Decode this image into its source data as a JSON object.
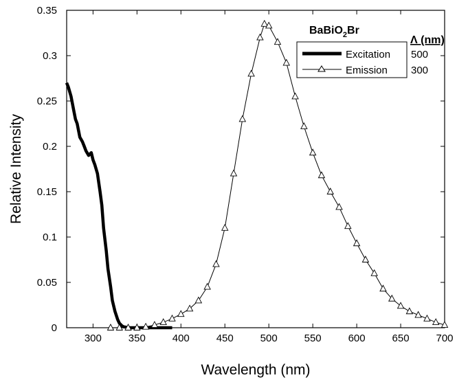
{
  "chart_data": {
    "type": "line",
    "xlabel": "Wavelength (nm)",
    "ylabel": "Relative Intensity",
    "xlim": [
      270,
      700
    ],
    "ylim": [
      0,
      0.35
    ],
    "x_ticks": [
      "300",
      "350",
      "400",
      "450",
      "500",
      "550",
      "600",
      "650",
      "700"
    ],
    "y_ticks": [
      "0",
      "0.05",
      "0.1",
      "0.15",
      "0.2",
      "0.25",
      "0.3",
      "0.35"
    ],
    "grid": false,
    "legend": {
      "title_main": "BaBiO",
      "title_sub": "2",
      "title_tail": "Br",
      "column_header": "Λ (nm)",
      "placement": "top-right"
    },
    "series": [
      {
        "name": "Excitation",
        "lambda": "500",
        "style": "thick-line",
        "color": "#000000",
        "x": [
          270,
          272,
          275,
          278,
          280,
          282,
          285,
          288,
          290,
          292,
          295,
          298,
          300,
          302,
          305,
          308,
          310,
          312,
          315,
          317,
          320,
          322,
          325,
          328,
          330,
          333,
          335,
          338,
          340,
          345,
          350,
          360,
          370,
          380,
          390
        ],
        "y": [
          0.27,
          0.265,
          0.255,
          0.24,
          0.23,
          0.225,
          0.21,
          0.205,
          0.2,
          0.195,
          0.19,
          0.193,
          0.185,
          0.18,
          0.17,
          0.15,
          0.135,
          0.11,
          0.085,
          0.065,
          0.045,
          0.03,
          0.018,
          0.009,
          0.005,
          0.002,
          0.001,
          0.0005,
          0,
          0,
          0,
          0,
          0,
          0,
          0
        ]
      },
      {
        "name": "Emission",
        "lambda": "300",
        "style": "thin-line-triangles",
        "color": "#000000",
        "x": [
          320,
          330,
          340,
          350,
          360,
          370,
          380,
          390,
          400,
          410,
          420,
          430,
          440,
          450,
          460,
          470,
          480,
          490,
          495,
          500,
          510,
          520,
          530,
          540,
          550,
          560,
          570,
          580,
          590,
          600,
          610,
          620,
          630,
          640,
          650,
          660,
          670,
          680,
          690,
          700
        ],
        "y": [
          0,
          0,
          0,
          0,
          0.001,
          0.003,
          0.006,
          0.01,
          0.015,
          0.021,
          0.03,
          0.045,
          0.07,
          0.11,
          0.17,
          0.23,
          0.28,
          0.32,
          0.335,
          0.333,
          0.315,
          0.292,
          0.255,
          0.222,
          0.193,
          0.168,
          0.15,
          0.133,
          0.112,
          0.093,
          0.075,
          0.06,
          0.043,
          0.032,
          0.024,
          0.018,
          0.014,
          0.01,
          0.006,
          0.003
        ]
      }
    ]
  }
}
